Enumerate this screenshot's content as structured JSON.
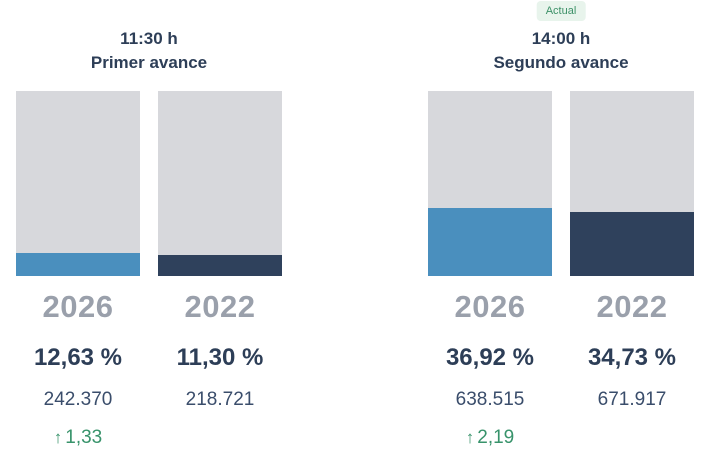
{
  "colors": {
    "bar_2026": "#4a8fbe",
    "bar_2022": "#2f415c",
    "bar_track": "#d7d8dc",
    "year_label": "#9aa0ab",
    "text_dark": "#2d3e57",
    "votes_text": "#3a4d6b",
    "delta_green": "#38936b",
    "badge_bg": "#e8f4ec",
    "badge_text": "#3d9168"
  },
  "chart_data": {
    "type": "bar",
    "title": "",
    "xlabel": "",
    "ylabel": "",
    "ylim": [
      0,
      100
    ],
    "unit": "%",
    "legend_position": "none",
    "grid": false,
    "groups": [
      {
        "time": "11:30 h",
        "label": "Primer avance",
        "badge": null,
        "bars": [
          {
            "year": "2026",
            "percent": 12.63,
            "percent_label": "12,63 %",
            "votes": "242.370",
            "delta": {
              "arrow": "↑",
              "value": "1,33"
            }
          },
          {
            "year": "2022",
            "percent": 11.3,
            "percent_label": "11,30 %",
            "votes": "218.721",
            "delta": null
          }
        ]
      },
      {
        "time": "14:00 h",
        "label": "Segundo avance",
        "badge": {
          "label": "Actual"
        },
        "bars": [
          {
            "year": "2026",
            "percent": 36.92,
            "percent_label": "36,92 %",
            "votes": "638.515",
            "delta": {
              "arrow": "↑",
              "value": "2,19"
            }
          },
          {
            "year": "2022",
            "percent": 34.73,
            "percent_label": "34,73 %",
            "votes": "671.917",
            "delta": null
          }
        ]
      }
    ]
  }
}
